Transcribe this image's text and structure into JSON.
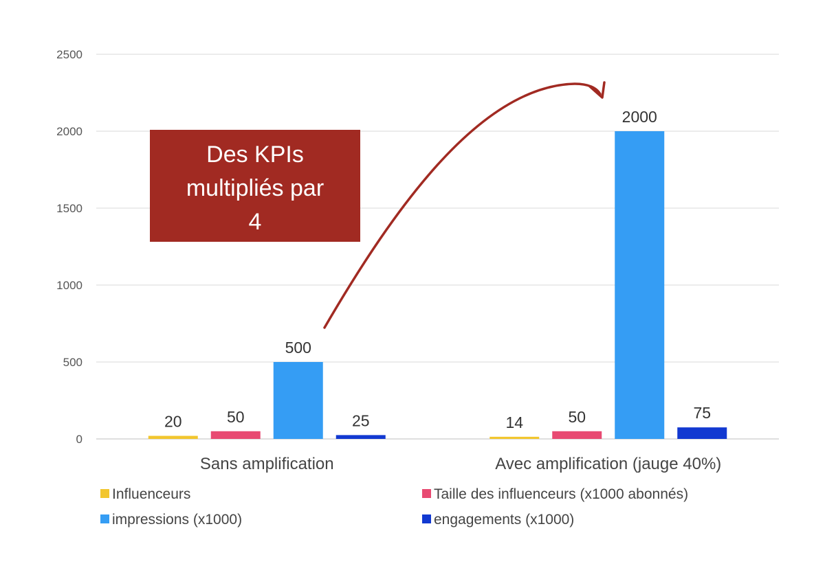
{
  "chart_data": {
    "type": "bar",
    "categories": [
      "Sans amplification",
      "Avec amplification (jauge 40%)"
    ],
    "series": [
      {
        "name": "Influenceurs",
        "values": [
          20,
          14
        ],
        "color": "#F2C62E"
      },
      {
        "name": "Taille des influenceurs (x1000 abonnés)",
        "values": [
          50,
          50
        ],
        "color": "#E84A72"
      },
      {
        "name": "impressions (x1000)",
        "values": [
          500,
          2000
        ],
        "color": "#359DF4"
      },
      {
        "name": "engagements (x1000)",
        "values": [
          25,
          75
        ],
        "color": "#1239D1"
      }
    ],
    "yticks": [
      "0",
      "500",
      "1000",
      "1500",
      "2000",
      "2500"
    ],
    "ylim": [
      0,
      2500
    ],
    "grid": true,
    "legend_position": "bottom",
    "annotation": {
      "lines": [
        "Des KPIs",
        "multipliés par",
        "4"
      ],
      "box_color": "#A12A22",
      "arrow_color": "#A12A22"
    }
  }
}
